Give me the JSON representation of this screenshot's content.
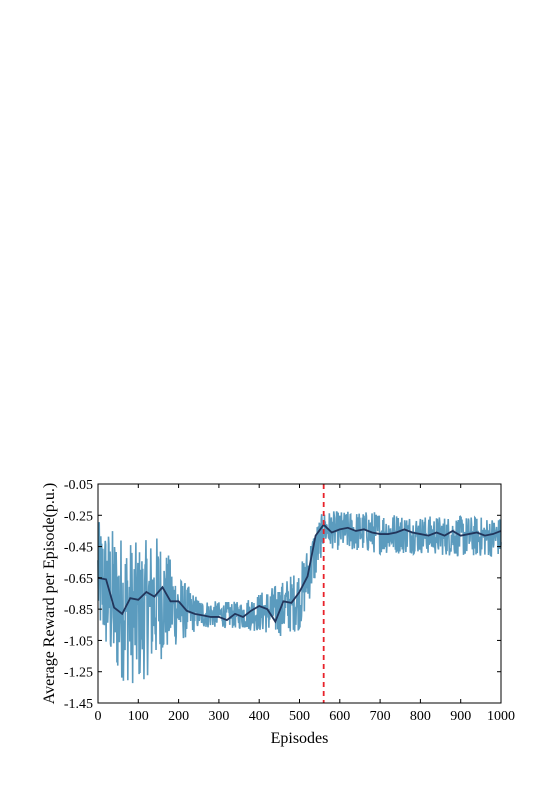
{
  "chart_data": {
    "type": "line",
    "title": "",
    "xlabel": "Episodes",
    "ylabel": "Average Reward per Episode(p.u.)",
    "xlim": [
      0,
      1000
    ],
    "ylim": [
      -1.45,
      -0.05
    ],
    "x_ticks": [
      "0",
      "100",
      "200",
      "300",
      "400",
      "500",
      "600",
      "700",
      "800",
      "900",
      "1000"
    ],
    "y_ticks": [
      "-0.05",
      "-0.25",
      "-0.45",
      "-0.65",
      "-0.85",
      "-1.05",
      "-1.25",
      "-1.45"
    ],
    "grid": false,
    "legend": "none",
    "colors": {
      "raw": "#5B9BBE",
      "smoothed": "#22355B",
      "marker": "#E8222A"
    },
    "series": [
      {
        "style": "raw episode reward (noisy)",
        "envelope": [
          {
            "x": 0,
            "low": -1.02,
            "high": -0.28
          },
          {
            "x": 40,
            "low": -1.3,
            "high": -0.32
          },
          {
            "x": 100,
            "low": -1.36,
            "high": -0.42
          },
          {
            "x": 150,
            "low": -1.2,
            "high": -0.36
          },
          {
            "x": 200,
            "low": -1.08,
            "high": -0.62
          },
          {
            "x": 250,
            "low": -0.98,
            "high": -0.78
          },
          {
            "x": 300,
            "low": -0.97,
            "high": -0.8
          },
          {
            "x": 350,
            "low": -0.98,
            "high": -0.8
          },
          {
            "x": 400,
            "low": -1.0,
            "high": -0.74
          },
          {
            "x": 450,
            "low": -1.03,
            "high": -0.68
          },
          {
            "x": 500,
            "low": -0.99,
            "high": -0.58
          },
          {
            "x": 540,
            "low": -0.68,
            "high": -0.3
          },
          {
            "x": 560,
            "low": -0.45,
            "high": -0.22
          },
          {
            "x": 600,
            "low": -0.48,
            "high": -0.22
          },
          {
            "x": 700,
            "low": -0.5,
            "high": -0.22
          },
          {
            "x": 800,
            "low": -0.5,
            "high": -0.25
          },
          {
            "x": 900,
            "low": -0.52,
            "high": -0.25
          },
          {
            "x": 1000,
            "low": -0.52,
            "high": -0.26
          }
        ]
      },
      {
        "style": "moving average",
        "x": [
          0,
          20,
          40,
          60,
          80,
          100,
          120,
          140,
          160,
          180,
          200,
          220,
          240,
          260,
          280,
          300,
          320,
          340,
          360,
          380,
          400,
          420,
          440,
          460,
          480,
          500,
          520,
          540,
          560,
          580,
          600,
          620,
          640,
          660,
          680,
          700,
          720,
          740,
          760,
          780,
          800,
          820,
          840,
          860,
          880,
          900,
          920,
          940,
          960,
          980,
          1000
        ],
        "y": [
          -0.65,
          -0.66,
          -0.84,
          -0.88,
          -0.78,
          -0.79,
          -0.74,
          -0.77,
          -0.71,
          -0.8,
          -0.8,
          -0.86,
          -0.88,
          -0.89,
          -0.9,
          -0.9,
          -0.92,
          -0.88,
          -0.9,
          -0.86,
          -0.83,
          -0.85,
          -0.93,
          -0.8,
          -0.81,
          -0.74,
          -0.64,
          -0.38,
          -0.31,
          -0.36,
          -0.34,
          -0.33,
          -0.35,
          -0.34,
          -0.36,
          -0.37,
          -0.37,
          -0.36,
          -0.34,
          -0.36,
          -0.37,
          -0.38,
          -0.36,
          -0.38,
          -0.35,
          -0.38,
          -0.37,
          -0.36,
          -0.38,
          -0.37,
          -0.35
        ]
      }
    ],
    "vertical_marker": {
      "x": 560,
      "style": "dashed"
    }
  }
}
